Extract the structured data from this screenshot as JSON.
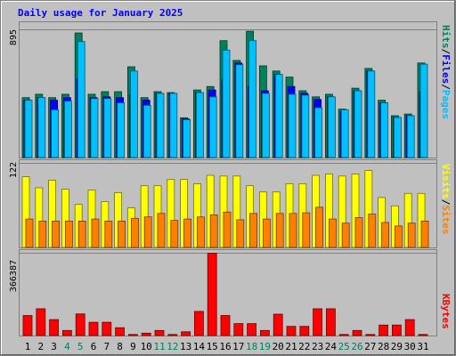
{
  "chart_data": {
    "type": "bar",
    "title": "Daily usage for January 2025",
    "days": [
      "1",
      "2",
      "3",
      "4",
      "5",
      "6",
      "7",
      "8",
      "9",
      "10",
      "11",
      "12",
      "13",
      "14",
      "15",
      "16",
      "17",
      "18",
      "19",
      "20",
      "21",
      "22",
      "23",
      "24",
      "25",
      "26",
      "27",
      "28",
      "29",
      "30",
      "31"
    ],
    "weekend_days": [
      "4",
      "5",
      "11",
      "12",
      "18",
      "19",
      "25",
      "26"
    ],
    "colors": {
      "hits": "#00805c",
      "files": "#0000ff",
      "pages": "#00c0ff",
      "visits": "#ffff00",
      "sites": "#ff8000",
      "kbytes": "#ff0000",
      "background": "#c0c0c0",
      "weekend_label": "#00805c",
      "title": "#0000ff"
    },
    "panels": [
      {
        "id": "top",
        "max_label": "895",
        "max_value": 895,
        "legend": [
          {
            "text": "Hits",
            "color_key": "hits"
          },
          {
            "text": "/",
            "color_key": "none"
          },
          {
            "text": "Files",
            "color_key": "files"
          },
          {
            "text": "/",
            "color_key": "none"
          },
          {
            "text": "Pages",
            "color_key": "pages"
          }
        ],
        "series": [
          {
            "name": "Hits",
            "color_key": "hits",
            "values": [
              418,
              442,
              418,
              442,
              870,
              442,
              460,
              460,
              634,
              418,
              460,
              454,
              278,
              472,
              496,
              816,
              678,
              882,
              640,
              604,
              562,
              466,
              424,
              442,
              338,
              484,
              622,
              400,
              292,
              304,
              660
            ]
          },
          {
            "name": "Files",
            "color_key": "files",
            "values": [
              400,
              418,
              400,
              418,
              550,
              418,
              424,
              418,
              440,
              400,
              448,
              448,
              270,
              454,
              472,
              544,
              660,
              496,
              466,
              580,
              496,
              448,
              406,
              424,
              320,
              466,
              604,
              382,
              280,
              292,
              460
            ]
          },
          {
            "name": "Pages",
            "color_key": "pages",
            "values": [
              400,
              418,
              334,
              394,
              810,
              412,
              412,
              382,
              604,
              364,
              448,
              448,
              264,
              454,
              424,
              750,
              648,
              816,
              448,
              580,
              442,
              436,
              348,
              424,
              334,
              466,
              604,
              382,
              280,
              292,
              652
            ]
          }
        ]
      },
      {
        "id": "middle",
        "max_label": "122",
        "max_value": 122,
        "legend": [
          {
            "text": "Visits",
            "color_key": "visits"
          },
          {
            "text": "/",
            "color_key": "none"
          },
          {
            "text": "Sites",
            "color_key": "sites"
          }
        ],
        "series": [
          {
            "name": "Visits",
            "color_key": "visits",
            "values": [
              102,
              86,
              97,
              84,
              62,
              83,
              66,
              79,
              57,
              89,
              89,
              98,
              98,
              92,
              104,
              103,
              103,
              89,
              80,
              80,
              92,
              92,
              104,
              106,
              103,
              106,
              111,
              72,
              60,
              78,
              78
            ]
          },
          {
            "name": "Sites",
            "color_key": "sites",
            "values": [
              41,
              38,
              38,
              38,
              38,
              41,
              38,
              38,
              42,
              44,
              49,
              39,
              41,
              44,
              47,
              51,
              40,
              49,
              41,
              49,
              49,
              50,
              58,
              41,
              35,
              43,
              48,
              36,
              31,
              35,
              38
            ]
          }
        ]
      },
      {
        "id": "bottom",
        "max_label": "366387",
        "max_value": 366387,
        "legend": [
          {
            "text": "KBytes",
            "color_key": "kbytes"
          }
        ],
        "series": [
          {
            "name": "KBytes",
            "color_key": "kbytes",
            "values": [
              88600,
              118600,
              70600,
              22600,
              95600,
              58600,
              58600,
              34600,
              4600,
              10600,
              22600,
              4600,
              16600,
              106600,
              364600,
              88600,
              52600,
              52600,
              22600,
              94600,
              40600,
              40600,
              118600,
              118600,
              4600,
              22600,
              4600,
              46600,
              46600,
              70600,
              4600
            ]
          }
        ]
      }
    ]
  }
}
